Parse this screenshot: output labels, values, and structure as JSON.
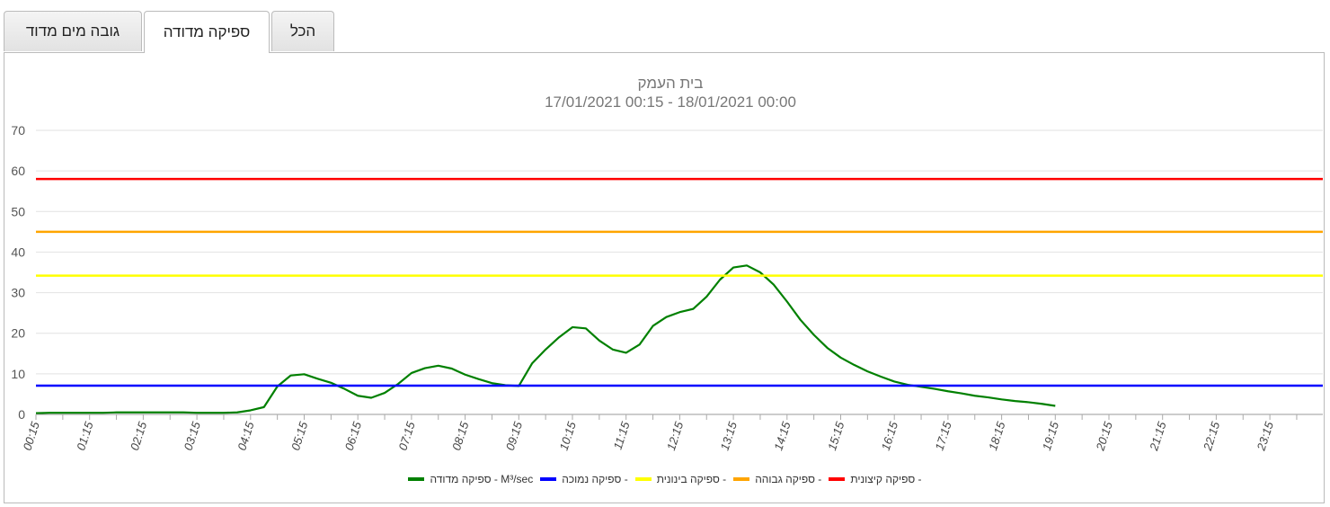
{
  "tabs": [
    {
      "label": "גובה מים מדוד",
      "active": false
    },
    {
      "label": "ספיקה מדודה",
      "active": true
    },
    {
      "label": "הכל",
      "active": false
    }
  ],
  "chart_data": {
    "type": "line",
    "title": "בית העמק",
    "subtitle": "17/01/2021 00:15  -  18/01/2021 00:00",
    "ylim": [
      0,
      70
    ],
    "yticks": [
      0,
      10,
      20,
      30,
      40,
      50,
      60,
      70
    ],
    "xticks": [
      "00:15",
      "01:15",
      "02:15",
      "03:15",
      "04:15",
      "05:15",
      "06:15",
      "07:15",
      "08:15",
      "09:15",
      "10:15",
      "11:15",
      "12:15",
      "13:15",
      "14:15",
      "15:15",
      "16:15",
      "17:15",
      "18:15",
      "19:15",
      "20:15",
      "21:15",
      "22:15",
      "23:15"
    ],
    "x_start": "00:15",
    "x_end": "23:59",
    "interval_minutes": 15,
    "grid": true,
    "legend_position": "bottom",
    "series": [
      {
        "name": "M³/sec - ספיקה מדודה",
        "color": "#008000",
        "type": "measured",
        "values": [
          0.3,
          0.4,
          0.4,
          0.4,
          0.4,
          0.4,
          0.5,
          0.5,
          0.5,
          0.5,
          0.5,
          0.5,
          0.4,
          0.4,
          0.4,
          0.5,
          1.0,
          1.8,
          6.9,
          9.6,
          9.9,
          8.8,
          7.8,
          6.3,
          4.6,
          4.1,
          5.3,
          7.5,
          10.2,
          11.4,
          12.0,
          11.3,
          9.8,
          8.7,
          7.7,
          7.2,
          7.0,
          12.6,
          16.0,
          19.0,
          21.5,
          21.2,
          18.2,
          16.0,
          15.2,
          17.2,
          21.8,
          24.0,
          25.2,
          26.0,
          29.0,
          33.2,
          36.2,
          36.7,
          35.0,
          32.0,
          27.8,
          23.3,
          19.6,
          16.4,
          14.0,
          12.2,
          10.6,
          9.3,
          8.1,
          7.3,
          6.8,
          6.3,
          5.7,
          5.2,
          4.6,
          4.2,
          3.7,
          3.3,
          3.0,
          2.6,
          2.1
        ]
      },
      {
        "name": "- ספיקה נמוכה",
        "color": "#0000ff",
        "constant": 7.1
      },
      {
        "name": "- ספיקה בינונית",
        "color": "#ffff00",
        "constant": 34.2
      },
      {
        "name": "- ספיקה גבוהה",
        "color": "#ffa500",
        "constant": 45
      },
      {
        "name": "- ספיקה קיצונית",
        "color": "#ff0000",
        "constant": 58
      }
    ]
  }
}
